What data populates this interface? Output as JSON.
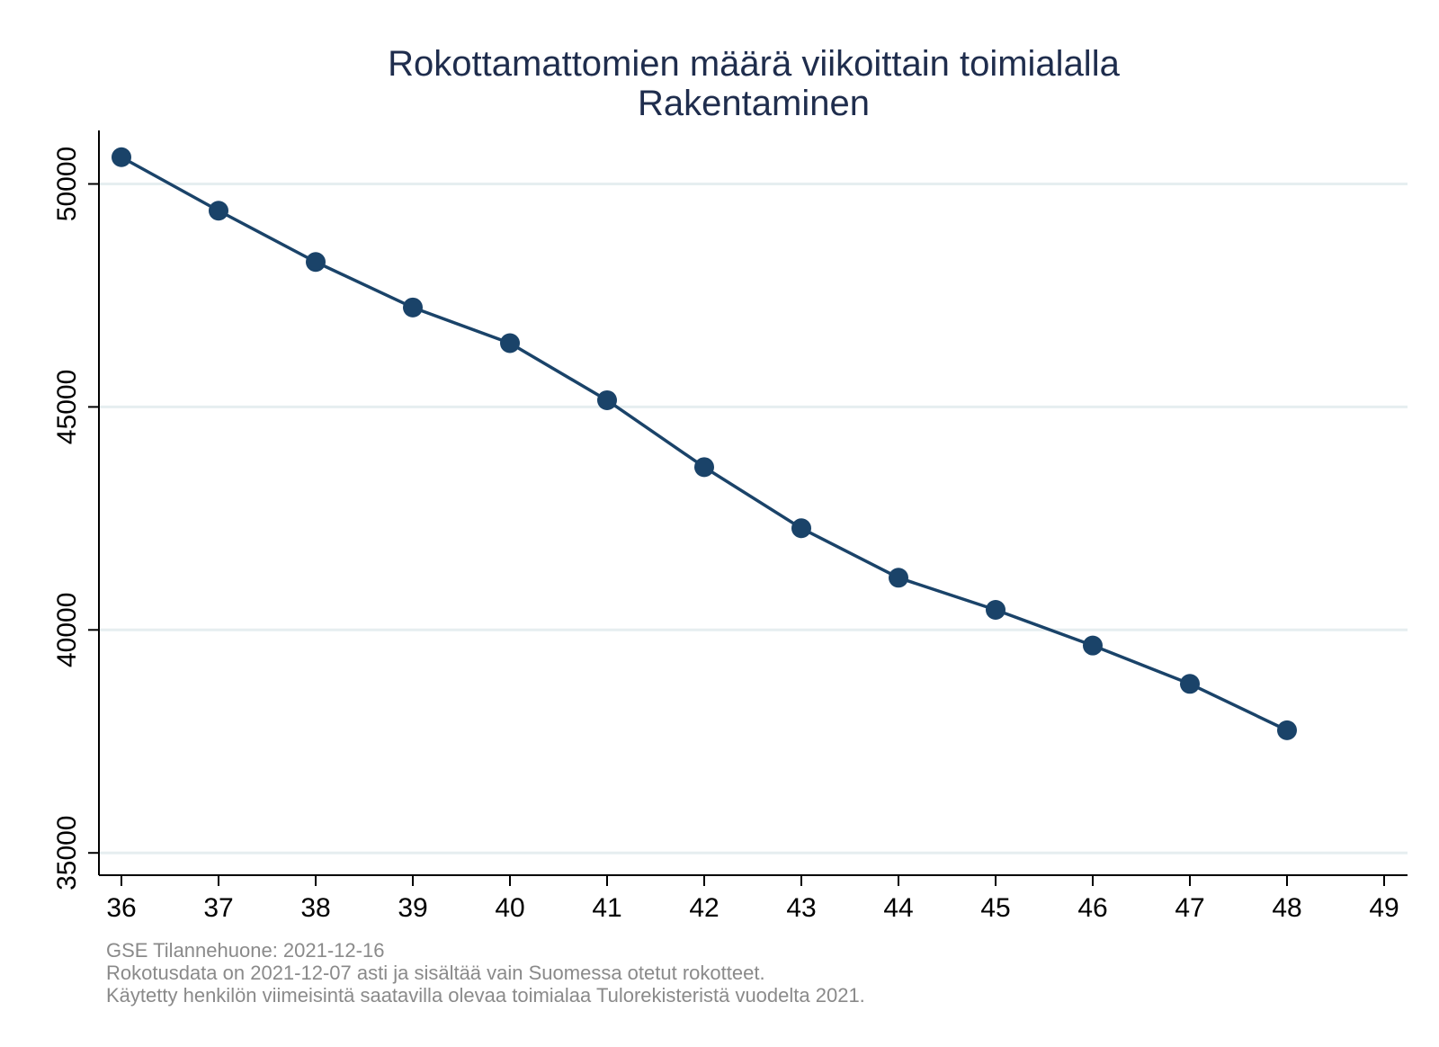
{
  "chart_data": {
    "type": "line",
    "title": "Rokottamattomien määrä viikoittain toimialalla",
    "subtitle": "Rakentaminen",
    "xlabel": "",
    "ylabel": "",
    "x": [
      36,
      37,
      38,
      39,
      40,
      41,
      42,
      43,
      44,
      45,
      46,
      47,
      48
    ],
    "series": [
      {
        "values": [
          50600,
          49400,
          48250,
          47230,
          46430,
          45150,
          43650,
          42280,
          41170,
          40450,
          39650,
          38790,
          37750
        ]
      }
    ],
    "xticks": [
      "36",
      "37",
      "38",
      "39",
      "40",
      "41",
      "42",
      "43",
      "44",
      "45",
      "46",
      "47",
      "48",
      "49"
    ],
    "yticks": [
      "35000",
      "40000",
      "45000",
      "50000"
    ],
    "xlim": [
      36,
      49
    ],
    "ylim": [
      34500,
      51200
    ],
    "grid": "horizontal",
    "colors": {
      "series": "#1a4369",
      "title": "#1f2d4d",
      "grid": "#e6eef0",
      "note": "#8a8a8a"
    }
  },
  "notes": [
    "GSE Tilannehuone: 2021-12-16",
    "Rokotusdata on 2021-12-07 asti ja sisältää vain Suomessa otetut rokotteet.",
    "Käytetty henkilön viimeisintä saatavilla olevaa toimialaa Tulorekisteristä vuodelta 2021."
  ]
}
